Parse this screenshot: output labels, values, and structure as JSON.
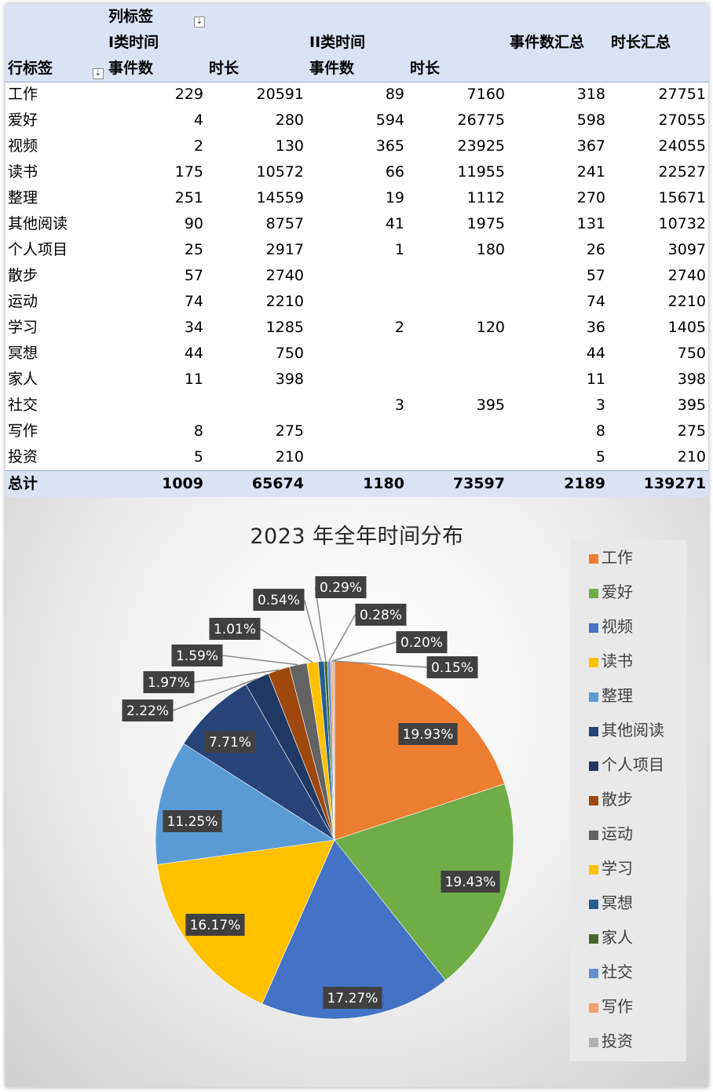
{
  "pivot": {
    "col_label_header": "列标签",
    "group1": "I类时间",
    "group2": "II类时间",
    "row_label_header": "行标签",
    "sub_events": "事件数",
    "sub_duration": "时长",
    "events_total_header": "事件数汇总",
    "duration_total_header": "时长汇总",
    "filter_glyph": "⇣",
    "rows": [
      {
        "label": "工作",
        "c1": "229",
        "c2": "20591",
        "c3": "89",
        "c4": "7160",
        "c5": "318",
        "c6": "27751"
      },
      {
        "label": "爱好",
        "c1": "4",
        "c2": "280",
        "c3": "594",
        "c4": "26775",
        "c5": "598",
        "c6": "27055"
      },
      {
        "label": "视频",
        "c1": "2",
        "c2": "130",
        "c3": "365",
        "c4": "23925",
        "c5": "367",
        "c6": "24055"
      },
      {
        "label": "读书",
        "c1": "175",
        "c2": "10572",
        "c3": "66",
        "c4": "11955",
        "c5": "241",
        "c6": "22527"
      },
      {
        "label": "整理",
        "c1": "251",
        "c2": "14559",
        "c3": "19",
        "c4": "1112",
        "c5": "270",
        "c6": "15671"
      },
      {
        "label": "其他阅读",
        "c1": "90",
        "c2": "8757",
        "c3": "41",
        "c4": "1975",
        "c5": "131",
        "c6": "10732"
      },
      {
        "label": "个人项目",
        "c1": "25",
        "c2": "2917",
        "c3": "1",
        "c4": "180",
        "c5": "26",
        "c6": "3097"
      },
      {
        "label": "散步",
        "c1": "57",
        "c2": "2740",
        "c3": "",
        "c4": "",
        "c5": "57",
        "c6": "2740"
      },
      {
        "label": "运动",
        "c1": "74",
        "c2": "2210",
        "c3": "",
        "c4": "",
        "c5": "74",
        "c6": "2210"
      },
      {
        "label": "学习",
        "c1": "34",
        "c2": "1285",
        "c3": "2",
        "c4": "120",
        "c5": "36",
        "c6": "1405"
      },
      {
        "label": "冥想",
        "c1": "44",
        "c2": "750",
        "c3": "",
        "c4": "",
        "c5": "44",
        "c6": "750"
      },
      {
        "label": "家人",
        "c1": "11",
        "c2": "398",
        "c3": "",
        "c4": "",
        "c5": "11",
        "c6": "398"
      },
      {
        "label": "社交",
        "c1": "",
        "c2": "",
        "c3": "3",
        "c4": "395",
        "c5": "3",
        "c6": "395"
      },
      {
        "label": "写作",
        "c1": "8",
        "c2": "275",
        "c3": "",
        "c4": "",
        "c5": "8",
        "c6": "275"
      },
      {
        "label": "投资",
        "c1": "5",
        "c2": "210",
        "c3": "",
        "c4": "",
        "c5": "5",
        "c6": "210"
      }
    ],
    "total": {
      "label": "总计",
      "c1": "1009",
      "c2": "65674",
      "c3": "1180",
      "c4": "73597",
      "c5": "2189",
      "c6": "139271"
    }
  },
  "chart_data": {
    "type": "pie",
    "title": "2023 年全年时间分布",
    "categories": [
      "工作",
      "爱好",
      "视频",
      "读书",
      "整理",
      "其他阅读",
      "个人项目",
      "散步",
      "运动",
      "学习",
      "冥想",
      "家人",
      "社交",
      "写作",
      "投资"
    ],
    "values": [
      27751,
      27055,
      24055,
      22527,
      15671,
      10732,
      3097,
      2740,
      2210,
      1405,
      750,
      398,
      395,
      275,
      210
    ],
    "labels": [
      "19.93%",
      "19.43%",
      "17.27%",
      "16.17%",
      "11.25%",
      "7.71%",
      "2.22%",
      "1.97%",
      "1.59%",
      "1.01%",
      "0.54%",
      "0.29%",
      "0.28%",
      "0.20%",
      "0.15%"
    ],
    "colors": [
      "#ed7d31",
      "#70ad47",
      "#4472c4",
      "#ffc000",
      "#5b9bd5",
      "#264478",
      "#1f3864",
      "#9e480e",
      "#636363",
      "#ffc000",
      "#255e91",
      "#43682b",
      "#698ed0",
      "#f4a06b",
      "#b2b2b2"
    ],
    "legend_position": "right"
  }
}
